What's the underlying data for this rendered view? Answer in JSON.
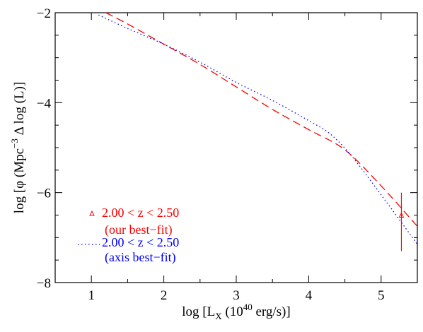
{
  "chart_data": {
    "type": "line",
    "xlabel": "log [L",
    "xlabel_sub": "X",
    "xlabel_rest1": " (10",
    "xlabel_sup": "40",
    "xlabel_rest2": " erg/s)]",
    "ylabel": "log [φ (Mpc",
    "ylabel_sup": "−3",
    "ylabel_rest": " Δ log (L)]",
    "xlim": [
      0.5,
      5.5
    ],
    "ylim": [
      -8,
      -2
    ],
    "xticks": [
      1,
      2,
      3,
      4,
      5
    ],
    "xtick_labels": [
      "1",
      "2",
      "3",
      "4",
      "5"
    ],
    "yticks": [
      -8,
      -6,
      -4,
      -2
    ],
    "ytick_labels": [
      "−8",
      "−6",
      "−4",
      "−2"
    ],
    "grid": false,
    "legend_position": "bottom-left",
    "series": [
      {
        "name": "2.00 < z <  2.50",
        "name_line2": "(our best−fit)",
        "color": "#ff0000",
        "style": "dashed",
        "marker": "triangle",
        "x": [
          1.2,
          1.5,
          2.0,
          2.5,
          3.0,
          3.5,
          4.0,
          4.5,
          5.0,
          5.5
        ],
        "y": [
          -2.0,
          -2.25,
          -2.7,
          -3.15,
          -3.65,
          -4.15,
          -4.6,
          -5.05,
          -5.85,
          -6.75
        ]
      },
      {
        "name": "2.00 < z <  2.50",
        "name_line2": "(axis best−fit)",
        "color": "#0000ff",
        "style": "dotted",
        "x": [
          1.1,
          1.5,
          2.0,
          2.5,
          3.0,
          3.5,
          4.0,
          4.3,
          4.6,
          5.0,
          5.5
        ],
        "y": [
          -2.05,
          -2.35,
          -2.7,
          -3.1,
          -3.55,
          -3.95,
          -4.4,
          -4.7,
          -5.2,
          -6.05,
          -7.15
        ]
      }
    ],
    "errorbar": {
      "x": 5.28,
      "y": -6.5,
      "ylow": -7.3,
      "yhigh": -6.0,
      "color": "#ff0000"
    }
  }
}
